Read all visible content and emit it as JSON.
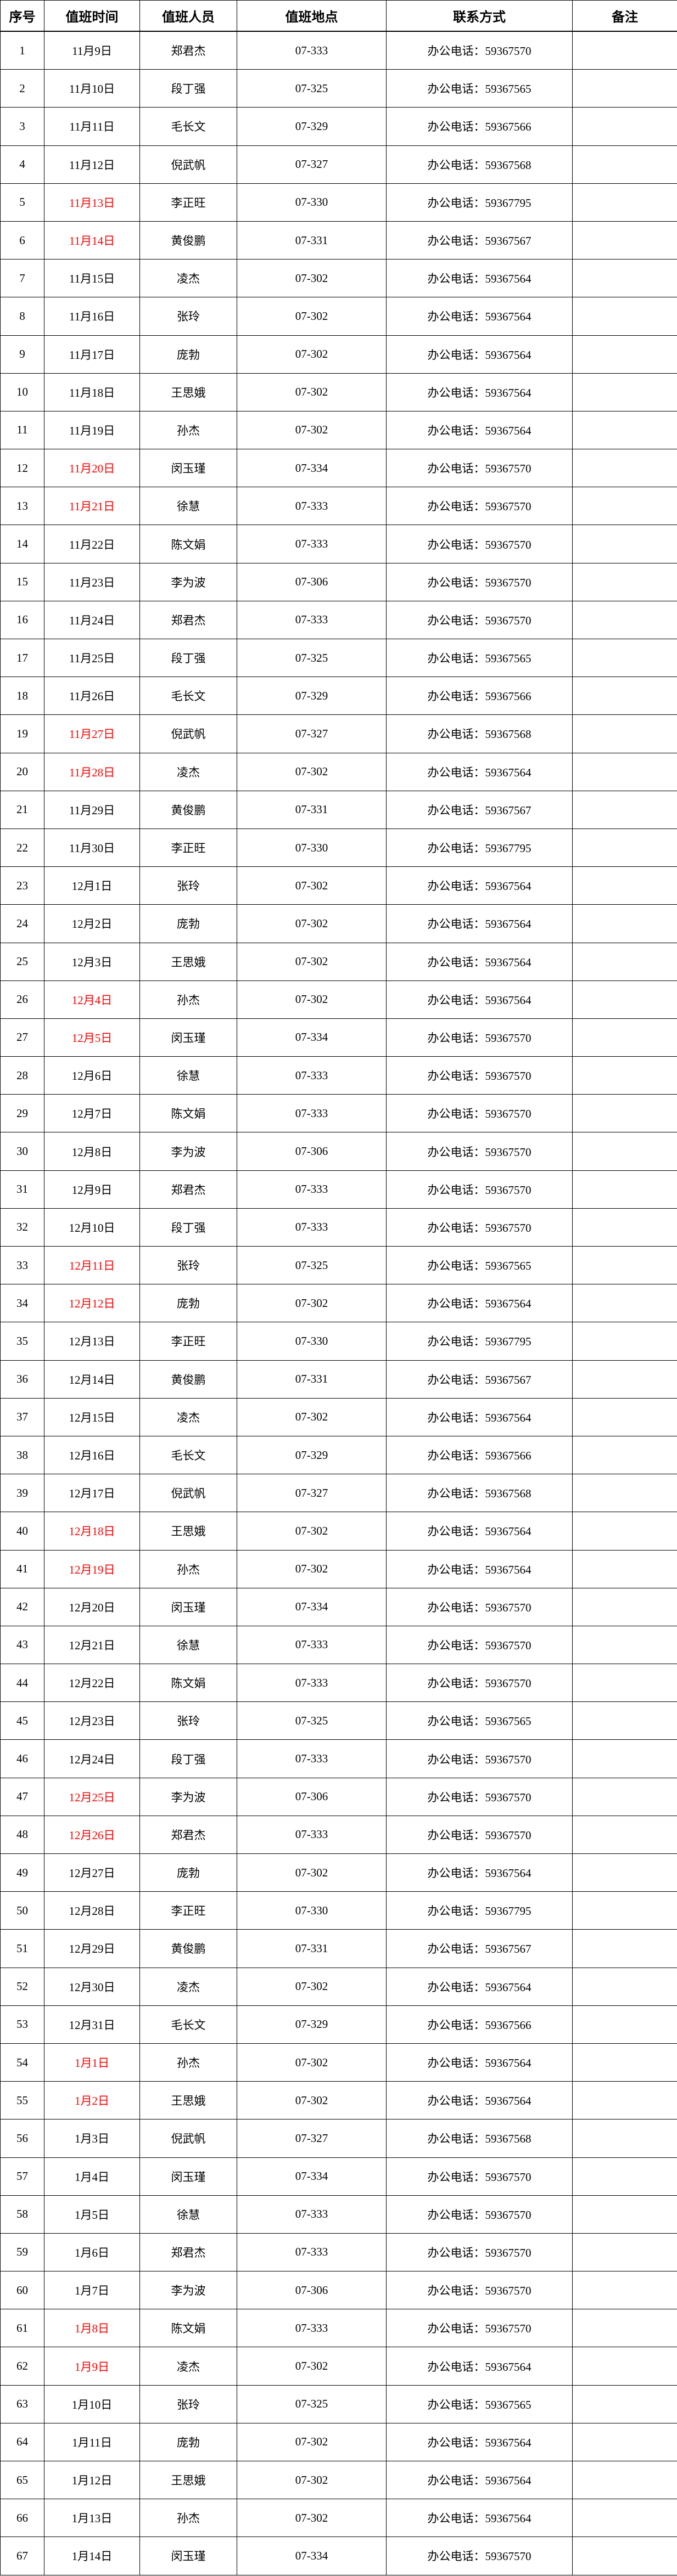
{
  "headers": [
    "序号",
    "值班时间",
    "值班人员",
    "值班地点",
    "联系方式",
    "备注"
  ],
  "highlight_color": "#ff0000",
  "rows": [
    {
      "no": "1",
      "date": "11月9日",
      "name": "郑君杰",
      "place": "07-333",
      "contact": "办公电话：59367570",
      "note": "",
      "red": false
    },
    {
      "no": "2",
      "date": "11月10日",
      "name": "段丁强",
      "place": "07-325",
      "contact": "办公电话：59367565",
      "note": "",
      "red": false
    },
    {
      "no": "3",
      "date": "11月11日",
      "name": "毛长文",
      "place": "07-329",
      "contact": "办公电话：59367566",
      "note": "",
      "red": false
    },
    {
      "no": "4",
      "date": "11月12日",
      "name": "倪武帆",
      "place": "07-327",
      "contact": "办公电话：59367568",
      "note": "",
      "red": false
    },
    {
      "no": "5",
      "date": "11月13日",
      "name": "李正旺",
      "place": "07-330",
      "contact": "办公电话：59367795",
      "note": "",
      "red": true
    },
    {
      "no": "6",
      "date": "11月14日",
      "name": "黄俊鹏",
      "place": "07-331",
      "contact": "办公电话：59367567",
      "note": "",
      "red": true
    },
    {
      "no": "7",
      "date": "11月15日",
      "name": "凌杰",
      "place": "07-302",
      "contact": "办公电话：59367564",
      "note": "",
      "red": false
    },
    {
      "no": "8",
      "date": "11月16日",
      "name": "张玲",
      "place": "07-302",
      "contact": "办公电话：59367564",
      "note": "",
      "red": false
    },
    {
      "no": "9",
      "date": "11月17日",
      "name": "庞勃",
      "place": "07-302",
      "contact": "办公电话：59367564",
      "note": "",
      "red": false
    },
    {
      "no": "10",
      "date": "11月18日",
      "name": "王思娥",
      "place": "07-302",
      "contact": "办公电话：59367564",
      "note": "",
      "red": false
    },
    {
      "no": "11",
      "date": "11月19日",
      "name": "孙杰",
      "place": "07-302",
      "contact": "办公电话：59367564",
      "note": "",
      "red": false
    },
    {
      "no": "12",
      "date": "11月20日",
      "name": "闵玉瑾",
      "place": "07-334",
      "contact": "办公电话：59367570",
      "note": "",
      "red": true
    },
    {
      "no": "13",
      "date": "11月21日",
      "name": "徐慧",
      "place": "07-333",
      "contact": "办公电话：59367570",
      "note": "",
      "red": true
    },
    {
      "no": "14",
      "date": "11月22日",
      "name": "陈文娟",
      "place": "07-333",
      "contact": "办公电话：59367570",
      "note": "",
      "red": false
    },
    {
      "no": "15",
      "date": "11月23日",
      "name": "李为波",
      "place": "07-306",
      "contact": "办公电话：59367570",
      "note": "",
      "red": false
    },
    {
      "no": "16",
      "date": "11月24日",
      "name": "郑君杰",
      "place": "07-333",
      "contact": "办公电话：59367570",
      "note": "",
      "red": false
    },
    {
      "no": "17",
      "date": "11月25日",
      "name": "段丁强",
      "place": "07-325",
      "contact": "办公电话：59367565",
      "note": "",
      "red": false
    },
    {
      "no": "18",
      "date": "11月26日",
      "name": "毛长文",
      "place": "07-329",
      "contact": "办公电话：59367566",
      "note": "",
      "red": false
    },
    {
      "no": "19",
      "date": "11月27日",
      "name": "倪武帆",
      "place": "07-327",
      "contact": "办公电话：59367568",
      "note": "",
      "red": true
    },
    {
      "no": "20",
      "date": "11月28日",
      "name": "凌杰",
      "place": "07-302",
      "contact": "办公电话：59367564",
      "note": "",
      "red": true
    },
    {
      "no": "21",
      "date": "11月29日",
      "name": "黄俊鹏",
      "place": "07-331",
      "contact": "办公电话：59367567",
      "note": "",
      "red": false
    },
    {
      "no": "22",
      "date": "11月30日",
      "name": "李正旺",
      "place": "07-330",
      "contact": "办公电话：59367795",
      "note": "",
      "red": false
    },
    {
      "no": "23",
      "date": "12月1日",
      "name": "张玲",
      "place": "07-302",
      "contact": "办公电话：59367564",
      "note": "",
      "red": false
    },
    {
      "no": "24",
      "date": "12月2日",
      "name": "庞勃",
      "place": "07-302",
      "contact": "办公电话：59367564",
      "note": "",
      "red": false
    },
    {
      "no": "25",
      "date": "12月3日",
      "name": "王思娥",
      "place": "07-302",
      "contact": "办公电话：59367564",
      "note": "",
      "red": false
    },
    {
      "no": "26",
      "date": "12月4日",
      "name": "孙杰",
      "place": "07-302",
      "contact": "办公电话：59367564",
      "note": "",
      "red": true
    },
    {
      "no": "27",
      "date": "12月5日",
      "name": "闵玉瑾",
      "place": "07-334",
      "contact": "办公电话：59367570",
      "note": "",
      "red": true
    },
    {
      "no": "28",
      "date": "12月6日",
      "name": "徐慧",
      "place": "07-333",
      "contact": "办公电话：59367570",
      "note": "",
      "red": false
    },
    {
      "no": "29",
      "date": "12月7日",
      "name": "陈文娟",
      "place": "07-333",
      "contact": "办公电话：59367570",
      "note": "",
      "red": false
    },
    {
      "no": "30",
      "date": "12月8日",
      "name": "李为波",
      "place": "07-306",
      "contact": "办公电话：59367570",
      "note": "",
      "red": false
    },
    {
      "no": "31",
      "date": "12月9日",
      "name": "郑君杰",
      "place": "07-333",
      "contact": "办公电话：59367570",
      "note": "",
      "red": false
    },
    {
      "no": "32",
      "date": "12月10日",
      "name": "段丁强",
      "place": "07-333",
      "contact": "办公电话：59367570",
      "note": "",
      "red": false
    },
    {
      "no": "33",
      "date": "12月11日",
      "name": "张玲",
      "place": "07-325",
      "contact": "办公电话：59367565",
      "note": "",
      "red": true
    },
    {
      "no": "34",
      "date": "12月12日",
      "name": "庞勃",
      "place": "07-302",
      "contact": "办公电话：59367564",
      "note": "",
      "red": true
    },
    {
      "no": "35",
      "date": "12月13日",
      "name": "李正旺",
      "place": "07-330",
      "contact": "办公电话：59367795",
      "note": "",
      "red": false
    },
    {
      "no": "36",
      "date": "12月14日",
      "name": "黄俊鹏",
      "place": "07-331",
      "contact": "办公电话：59367567",
      "note": "",
      "red": false
    },
    {
      "no": "37",
      "date": "12月15日",
      "name": "凌杰",
      "place": "07-302",
      "contact": "办公电话：59367564",
      "note": "",
      "red": false
    },
    {
      "no": "38",
      "date": "12月16日",
      "name": "毛长文",
      "place": "07-329",
      "contact": "办公电话：59367566",
      "note": "",
      "red": false
    },
    {
      "no": "39",
      "date": "12月17日",
      "name": "倪武帆",
      "place": "07-327",
      "contact": "办公电话：59367568",
      "note": "",
      "red": false
    },
    {
      "no": "40",
      "date": "12月18日",
      "name": "王思娥",
      "place": "07-302",
      "contact": "办公电话：59367564",
      "note": "",
      "red": true
    },
    {
      "no": "41",
      "date": "12月19日",
      "name": "孙杰",
      "place": "07-302",
      "contact": "办公电话：59367564",
      "note": "",
      "red": true
    },
    {
      "no": "42",
      "date": "12月20日",
      "name": "闵玉瑾",
      "place": "07-334",
      "contact": "办公电话：59367570",
      "note": "",
      "red": false
    },
    {
      "no": "43",
      "date": "12月21日",
      "name": "徐慧",
      "place": "07-333",
      "contact": "办公电话：59367570",
      "note": "",
      "red": false
    },
    {
      "no": "44",
      "date": "12月22日",
      "name": "陈文娟",
      "place": "07-333",
      "contact": "办公电话：59367570",
      "note": "",
      "red": false
    },
    {
      "no": "45",
      "date": "12月23日",
      "name": "张玲",
      "place": "07-325",
      "contact": "办公电话：59367565",
      "note": "",
      "red": false
    },
    {
      "no": "46",
      "date": "12月24日",
      "name": "段丁强",
      "place": "07-333",
      "contact": "办公电话：59367570",
      "note": "",
      "red": false
    },
    {
      "no": "47",
      "date": "12月25日",
      "name": "李为波",
      "place": "07-306",
      "contact": "办公电话：59367570",
      "note": "",
      "red": true
    },
    {
      "no": "48",
      "date": "12月26日",
      "name": "郑君杰",
      "place": "07-333",
      "contact": "办公电话：59367570",
      "note": "",
      "red": true
    },
    {
      "no": "49",
      "date": "12月27日",
      "name": "庞勃",
      "place": "07-302",
      "contact": "办公电话：59367564",
      "note": "",
      "red": false
    },
    {
      "no": "50",
      "date": "12月28日",
      "name": "李正旺",
      "place": "07-330",
      "contact": "办公电话：59367795",
      "note": "",
      "red": false
    },
    {
      "no": "51",
      "date": "12月29日",
      "name": "黄俊鹏",
      "place": "07-331",
      "contact": "办公电话：59367567",
      "note": "",
      "red": false
    },
    {
      "no": "52",
      "date": "12月30日",
      "name": "凌杰",
      "place": "07-302",
      "contact": "办公电话：59367564",
      "note": "",
      "red": false
    },
    {
      "no": "53",
      "date": "12月31日",
      "name": "毛长文",
      "place": "07-329",
      "contact": "办公电话：59367566",
      "note": "",
      "red": false
    },
    {
      "no": "54",
      "date": "1月1日",
      "name": "孙杰",
      "place": "07-302",
      "contact": "办公电话：59367564",
      "note": "",
      "red": true
    },
    {
      "no": "55",
      "date": "1月2日",
      "name": "王思娥",
      "place": "07-302",
      "contact": "办公电话：59367564",
      "note": "",
      "red": true
    },
    {
      "no": "56",
      "date": "1月3日",
      "name": "倪武帆",
      "place": "07-327",
      "contact": "办公电话：59367568",
      "note": "",
      "red": false
    },
    {
      "no": "57",
      "date": "1月4日",
      "name": "闵玉瑾",
      "place": "07-334",
      "contact": "办公电话：59367570",
      "note": "",
      "red": false
    },
    {
      "no": "58",
      "date": "1月5日",
      "name": "徐慧",
      "place": "07-333",
      "contact": "办公电话：59367570",
      "note": "",
      "red": false
    },
    {
      "no": "59",
      "date": "1月6日",
      "name": "郑君杰",
      "place": "07-333",
      "contact": "办公电话：59367570",
      "note": "",
      "red": false
    },
    {
      "no": "60",
      "date": "1月7日",
      "name": "李为波",
      "place": "07-306",
      "contact": "办公电话：59367570",
      "note": "",
      "red": false
    },
    {
      "no": "61",
      "date": "1月8日",
      "name": "陈文娟",
      "place": "07-333",
      "contact": "办公电话：59367570",
      "note": "",
      "red": true
    },
    {
      "no": "62",
      "date": "1月9日",
      "name": "凌杰",
      "place": "07-302",
      "contact": "办公电话：59367564",
      "note": "",
      "red": true
    },
    {
      "no": "63",
      "date": "1月10日",
      "name": "张玲",
      "place": "07-325",
      "contact": "办公电话：59367565",
      "note": "",
      "red": false
    },
    {
      "no": "64",
      "date": "1月11日",
      "name": "庞勃",
      "place": "07-302",
      "contact": "办公电话：59367564",
      "note": "",
      "red": false
    },
    {
      "no": "65",
      "date": "1月12日",
      "name": "王思娥",
      "place": "07-302",
      "contact": "办公电话：59367564",
      "note": "",
      "red": false
    },
    {
      "no": "66",
      "date": "1月13日",
      "name": "孙杰",
      "place": "07-302",
      "contact": "办公电话：59367564",
      "note": "",
      "red": false
    },
    {
      "no": "67",
      "date": "1月14日",
      "name": "闵玉瑾",
      "place": "07-334",
      "contact": "办公电话：59367570",
      "note": "",
      "red": false
    }
  ]
}
